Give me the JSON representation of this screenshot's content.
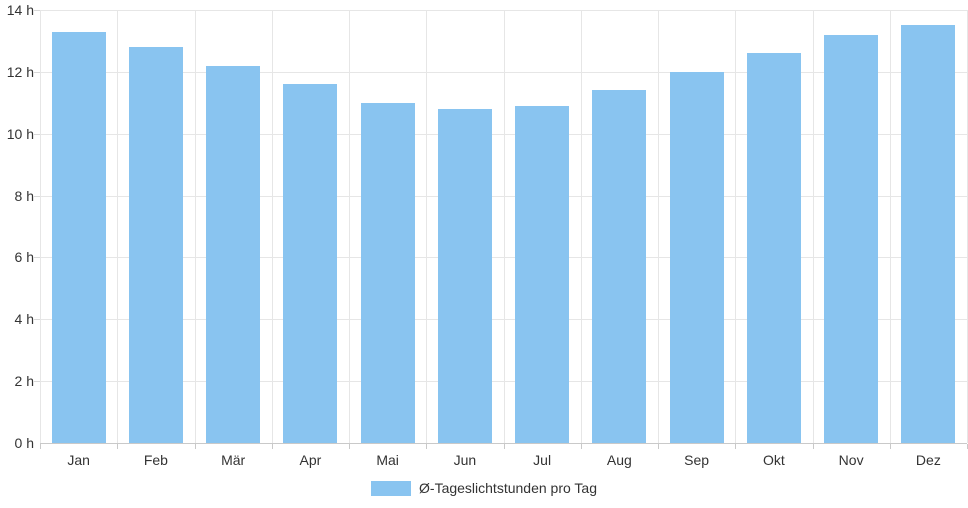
{
  "chart_data": {
    "type": "bar",
    "title": "",
    "categories": [
      "Jan",
      "Feb",
      "Mär",
      "Apr",
      "Mai",
      "Jun",
      "Jul",
      "Aug",
      "Sep",
      "Okt",
      "Nov",
      "Dez"
    ],
    "series": [
      {
        "name": "Ø-Tageslichtstunden pro Tag",
        "values": [
          13.3,
          12.8,
          12.2,
          11.6,
          11.0,
          10.8,
          10.9,
          11.4,
          12.0,
          12.6,
          13.2,
          13.5
        ]
      }
    ],
    "unit": "h",
    "xlabel": "",
    "ylabel": "",
    "ylim": [
      0,
      14
    ],
    "ytick_step": 2,
    "ytick_labels": [
      "0 h",
      "2 h",
      "4 h",
      "6 h",
      "8 h",
      "10 h",
      "12 h",
      "14 h"
    ],
    "grid": "both",
    "legend_position": "bottom-center"
  },
  "legend": {
    "label": "Ø-Tageslichtstunden pro Tag"
  },
  "colors": {
    "bar": "#89c4f0",
    "grid": "#e6e6e6",
    "axis": "#c9c9c9",
    "text": "#333333",
    "background": "#ffffff"
  }
}
